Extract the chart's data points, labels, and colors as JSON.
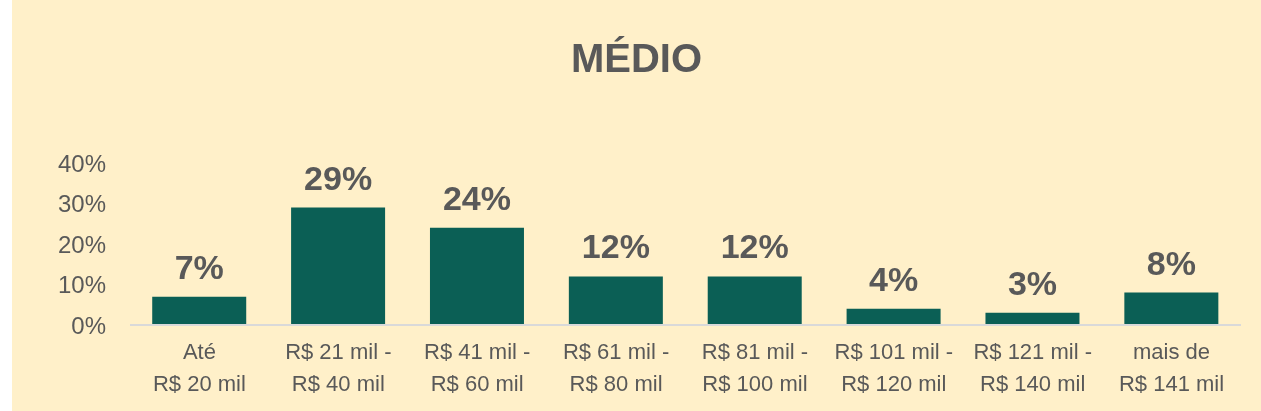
{
  "chart_data": {
    "type": "bar",
    "title": "MÉDIO",
    "categories": [
      "Até R$ 20 mil",
      "R$ 21 mil - R$ 40 mil",
      "R$ 41 mil - R$ 60 mil",
      "R$ 61 mil - R$ 80 mil",
      "R$ 81 mil - R$ 100 mil",
      "R$ 101 mil - R$ 120 mil",
      "R$ 121 mil - R$ 140 mil",
      "mais de R$ 141 mil"
    ],
    "values": [
      7,
      29,
      24,
      12,
      12,
      4,
      3,
      8
    ],
    "value_labels": [
      "7%",
      "29%",
      "24%",
      "12%",
      "12%",
      "4%",
      "3%",
      "8%"
    ],
    "color": "#0b5f55",
    "ylim": [
      0,
      40
    ],
    "yticks": [
      {
        "value": 0,
        "label": "0%"
      },
      {
        "value": 10,
        "label": "10%"
      },
      {
        "value": 20,
        "label": "20%"
      },
      {
        "value": 30,
        "label": "30%"
      },
      {
        "value": 40,
        "label": "40%"
      }
    ],
    "grid": false,
    "legend": false
  }
}
